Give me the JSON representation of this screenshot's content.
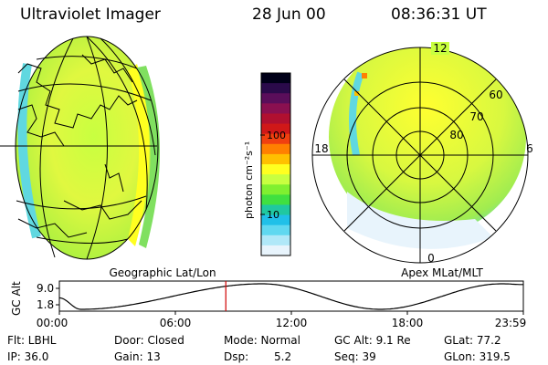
{
  "header": {
    "title": "Ultraviolet Imager",
    "date": "28 Jun 00",
    "time": "08:36:31 UT"
  },
  "colorbar": {
    "unit_label": "photon cm⁻²s⁻¹",
    "ticks": [
      "100",
      "10"
    ],
    "colors": [
      "#000018",
      "#2a0a4a",
      "#5a0e5a",
      "#8a1050",
      "#b01030",
      "#d01818",
      "#f04010",
      "#ff8000",
      "#ffc000",
      "#ffff20",
      "#c8ff40",
      "#80f030",
      "#40e040",
      "#20c8a0",
      "#20c0e8",
      "#60d8f0",
      "#b0e8f8",
      "#e8f4fc"
    ]
  },
  "geo_panel": {
    "label": "Geographic Lat/Lon"
  },
  "polar_panel": {
    "label": "Apex  MLat/MLT",
    "mlt_labels": {
      "top": "12",
      "left": "18",
      "right": "6",
      "bottom": "0"
    },
    "lat_labels": [
      "60",
      "70",
      "80"
    ]
  },
  "altitude_plot": {
    "ylabel": "GC Alt",
    "yticks": [
      "9.0",
      "1.8"
    ],
    "xticks": [
      "00:00",
      "06:00",
      "12:00",
      "18:00",
      "23:59"
    ],
    "current_hour": 8.61,
    "apogee_hours": [
      10.5,
      22.9
    ],
    "perigee_hours": [
      1.1,
      16.6
    ]
  },
  "info": {
    "flt": "Flt: LBHL",
    "ip": "IP: 36.0",
    "door": "Door: Closed",
    "gain": "Gain: 13",
    "mode": "Mode: Normal",
    "dsp_label": "Dsp:",
    "dsp_value": "5.2",
    "gc_alt": "GC Alt: 9.1 Re",
    "seq": "Seq: 39",
    "glat": "GLat:  77.2",
    "glon": "GLon: 319.5"
  }
}
